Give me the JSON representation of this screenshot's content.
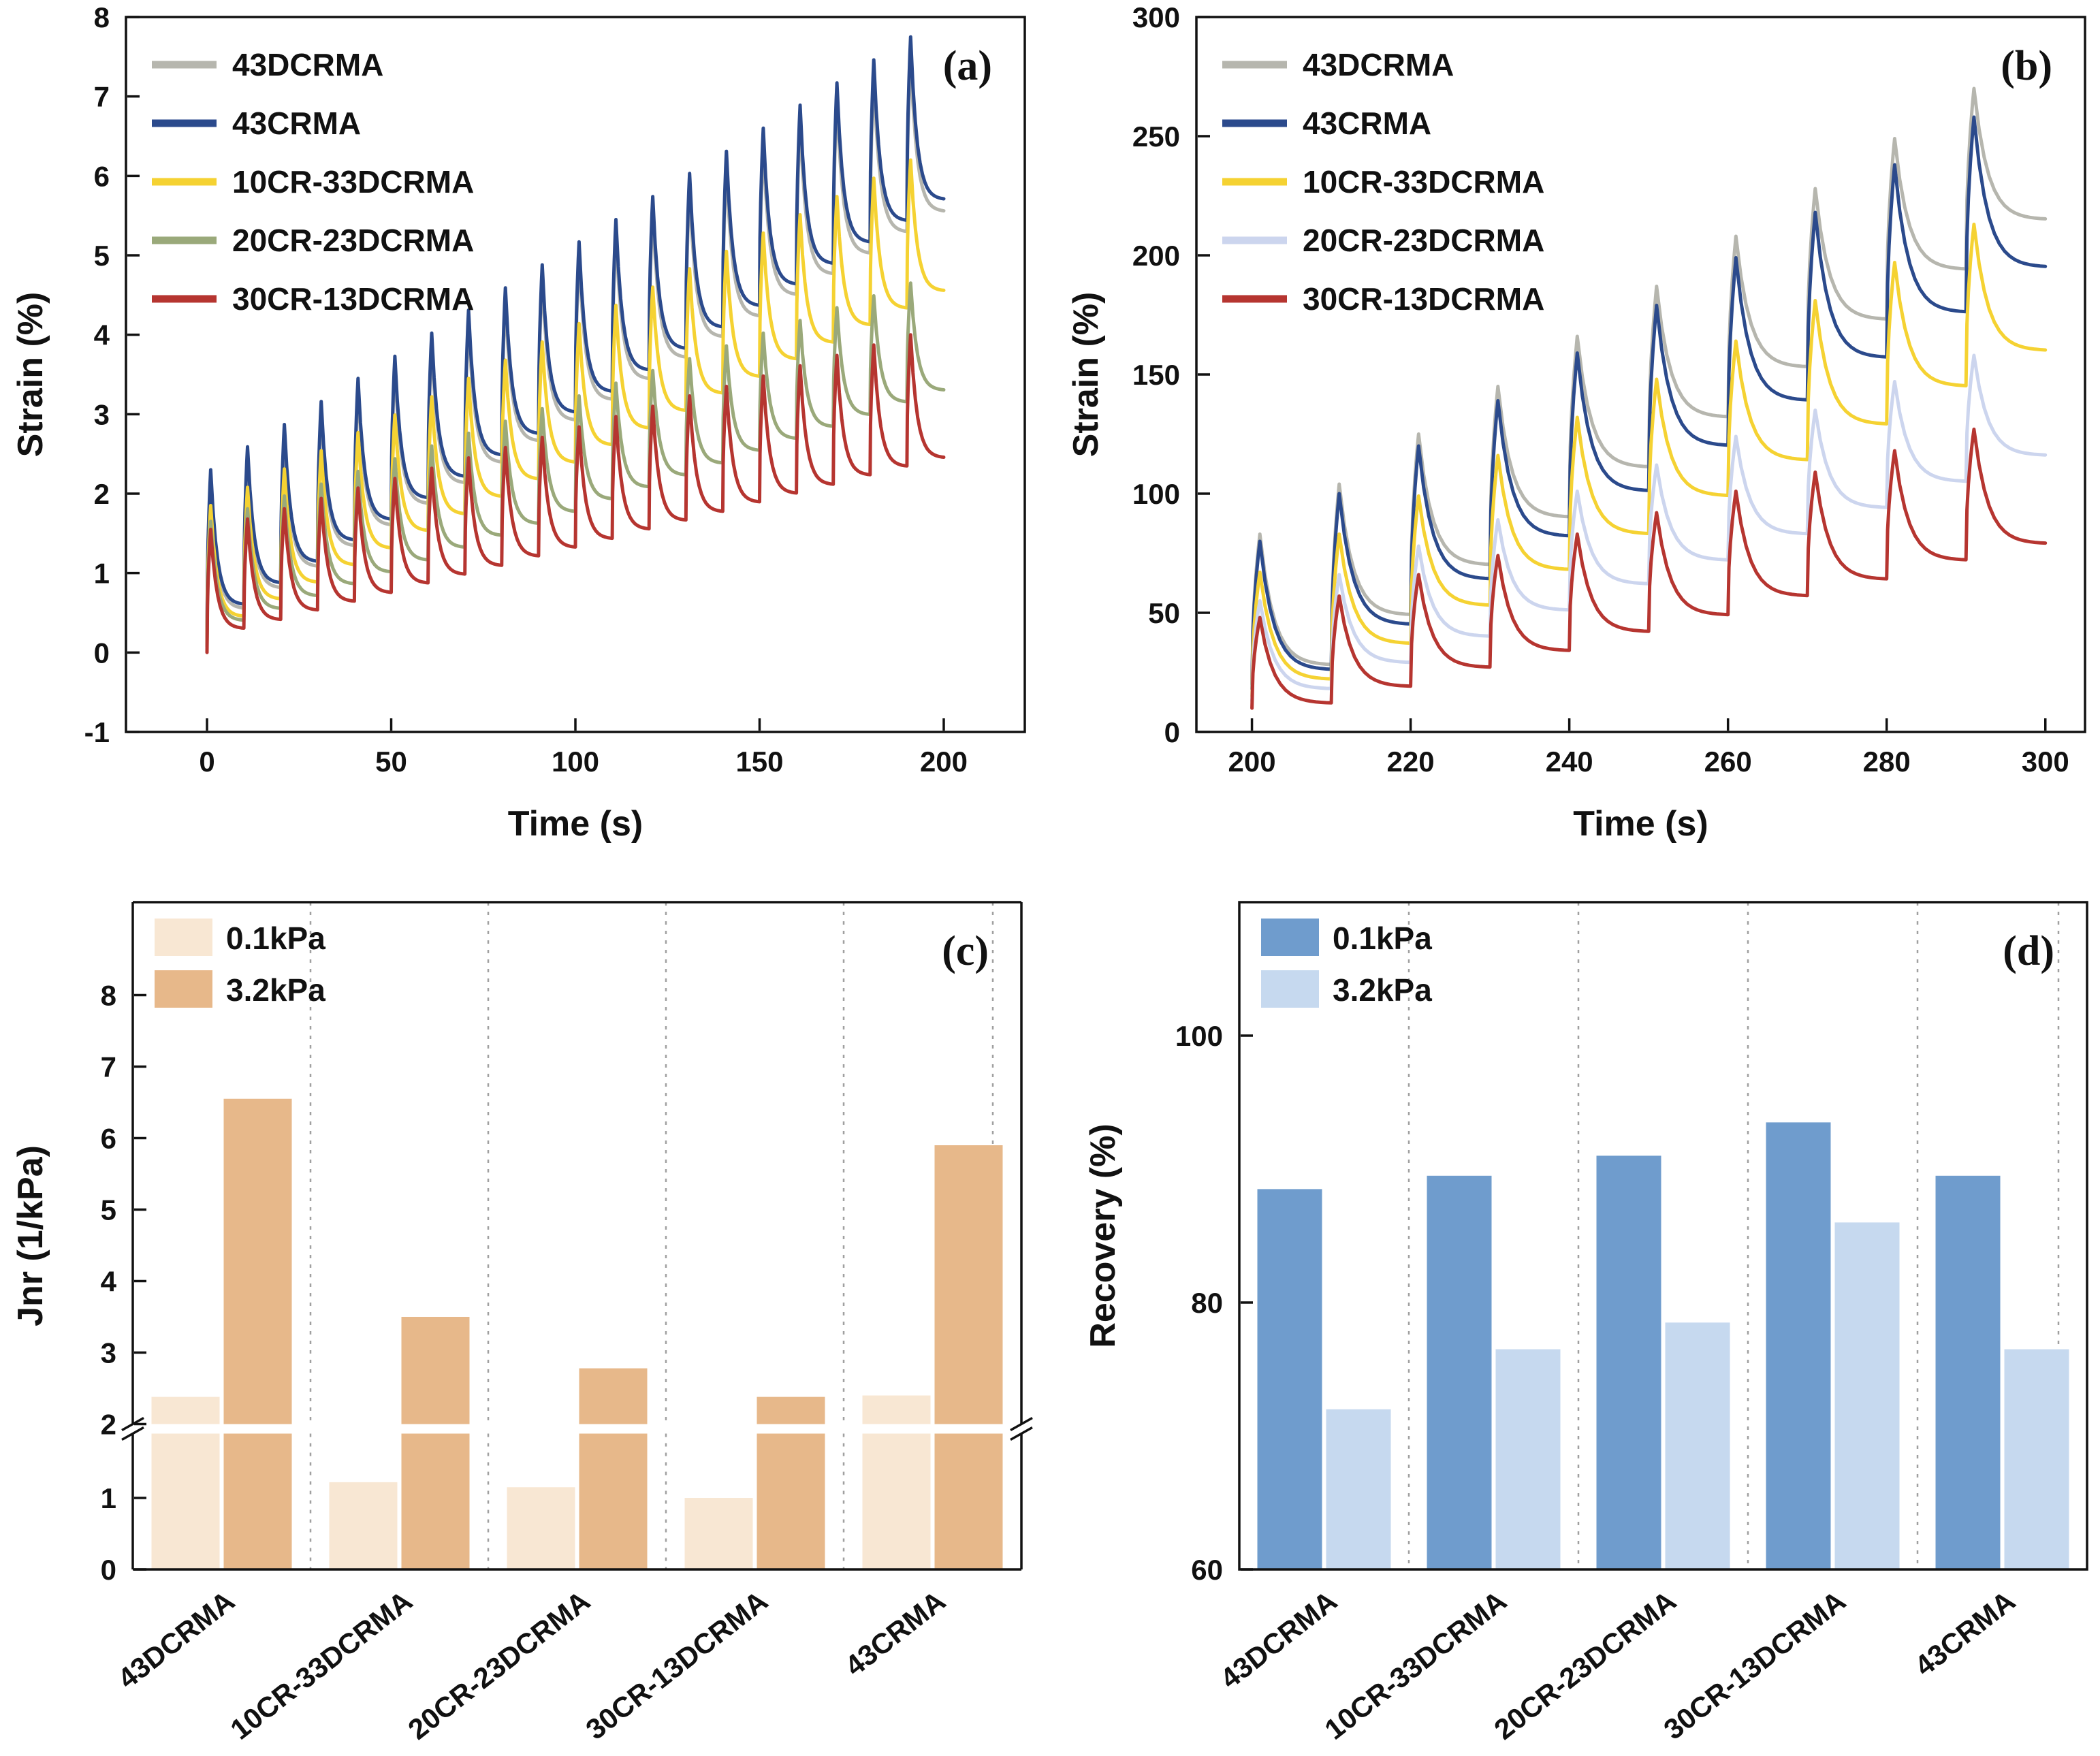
{
  "page": {
    "background": "#ffffff",
    "text_color": "#111111",
    "frame_color": "#111111",
    "gridline_color": "#a0a0a0"
  },
  "chart_data": [
    {
      "id": "a",
      "type": "line",
      "panel_label": "(a)",
      "xlabel": "Time (s)",
      "ylabel": "Strain (%)",
      "xlim": [
        -22,
        222
      ],
      "ylim": [
        -1,
        8
      ],
      "xticks": [
        0,
        50,
        100,
        150,
        200
      ],
      "yticks": [
        -1,
        0,
        1,
        2,
        3,
        4,
        5,
        6,
        7,
        8
      ],
      "legend_position": "top-left",
      "grid": false,
      "cycle": {
        "t_start": 0,
        "period_s": 10,
        "load_s": 1,
        "n_cycles": 20
      },
      "series": [
        {
          "name": "43DCRMA",
          "color": "#b6b6ae",
          "base0": 0.15,
          "peaks": [
            2.2,
            2.48,
            2.76,
            3.04,
            3.32,
            3.59,
            3.87,
            4.15,
            4.43,
            4.71,
            4.99,
            5.27,
            5.55,
            5.83,
            6.1,
            6.38,
            6.66,
            6.94,
            7.22,
            7.5
          ],
          "residuals": [
            0.55,
            0.81,
            1.08,
            1.34,
            1.6,
            1.87,
            2.13,
            2.39,
            2.66,
            2.92,
            3.18,
            3.44,
            3.71,
            3.97,
            4.23,
            4.5,
            4.76,
            5.02,
            5.29,
            5.55
          ]
        },
        {
          "name": "43CRMA",
          "color": "#2b4a8c",
          "base0": 0.18,
          "peaks": [
            2.3,
            2.59,
            2.87,
            3.16,
            3.45,
            3.73,
            4.02,
            4.31,
            4.59,
            4.88,
            5.17,
            5.45,
            5.74,
            6.03,
            6.31,
            6.6,
            6.89,
            7.17,
            7.46,
            7.75
          ],
          "residuals": [
            0.6,
            0.87,
            1.14,
            1.41,
            1.67,
            1.94,
            2.21,
            2.48,
            2.75,
            3.02,
            3.28,
            3.55,
            3.82,
            4.09,
            4.36,
            4.63,
            4.89,
            5.16,
            5.43,
            5.7
          ]
        },
        {
          "name": "10CR-33DCRMA",
          "color": "#f5d232",
          "base0": 0.1,
          "peaks": [
            1.85,
            2.08,
            2.31,
            2.54,
            2.77,
            2.99,
            3.22,
            3.45,
            3.68,
            3.91,
            4.14,
            4.37,
            4.6,
            4.83,
            5.05,
            5.28,
            5.51,
            5.74,
            5.97,
            6.2
          ],
          "residuals": [
            0.45,
            0.67,
            0.88,
            1.1,
            1.31,
            1.53,
            1.74,
            1.96,
            2.18,
            2.39,
            2.61,
            2.82,
            3.04,
            3.26,
            3.47,
            3.69,
            3.9,
            4.12,
            4.33,
            4.55
          ]
        },
        {
          "name": "20CR-23DCRMA",
          "color": "#9aa97a",
          "base0": 0.08,
          "peaks": [
            1.65,
            1.81,
            1.97,
            2.12,
            2.28,
            2.44,
            2.6,
            2.76,
            2.91,
            3.07,
            3.23,
            3.39,
            3.55,
            3.7,
            3.86,
            4.02,
            4.18,
            4.34,
            4.49,
            4.65
          ],
          "residuals": [
            0.4,
            0.55,
            0.71,
            0.86,
            1.01,
            1.16,
            1.32,
            1.47,
            1.62,
            1.77,
            1.93,
            2.08,
            2.23,
            2.38,
            2.54,
            2.69,
            2.84,
            2.99,
            3.15,
            3.3
          ]
        },
        {
          "name": "30CR-13DCRMA",
          "color": "#b63530",
          "base0": 0.0,
          "peaks": [
            1.55,
            1.68,
            1.81,
            1.94,
            2.07,
            2.19,
            2.32,
            2.45,
            2.58,
            2.71,
            2.84,
            2.97,
            3.1,
            3.23,
            3.35,
            3.48,
            3.61,
            3.74,
            3.87,
            4.0
          ],
          "residuals": [
            0.3,
            0.41,
            0.53,
            0.64,
            0.75,
            0.87,
            0.98,
            1.09,
            1.21,
            1.32,
            1.43,
            1.55,
            1.66,
            1.77,
            1.89,
            2.0,
            2.11,
            2.23,
            2.34,
            2.45
          ]
        }
      ]
    },
    {
      "id": "b",
      "type": "line",
      "panel_label": "(b)",
      "xlabel": "Time (s)",
      "ylabel": "Strain (%)",
      "xlim": [
        193,
        305
      ],
      "ylim": [
        0,
        300
      ],
      "xticks": [
        200,
        220,
        240,
        260,
        280,
        300
      ],
      "yticks": [
        0,
        50,
        100,
        150,
        200,
        250,
        300
      ],
      "legend_position": "top-left",
      "grid": false,
      "cycle": {
        "t_start": 200,
        "period_s": 10,
        "load_s": 1,
        "n_cycles": 10
      },
      "series": [
        {
          "name": "43DCRMA",
          "color": "#b6b6ae",
          "base0": 20,
          "peaks": [
            83,
            104,
            125,
            145,
            166,
            187,
            208,
            228,
            249,
            270
          ],
          "residuals": [
            28,
            49,
            70,
            90,
            111,
            132,
            153,
            173,
            194,
            215
          ]
        },
        {
          "name": "43CRMA",
          "color": "#2b4a8c",
          "base0": 18,
          "peaks": [
            80,
            100,
            120,
            139,
            159,
            179,
            199,
            218,
            238,
            258
          ],
          "residuals": [
            26,
            45,
            64,
            82,
            101,
            120,
            139,
            157,
            176,
            195
          ]
        },
        {
          "name": "10CR-33DCRMA",
          "color": "#f5d232",
          "base0": 15,
          "peaks": [
            67,
            83,
            99,
            116,
            132,
            148,
            164,
            181,
            197,
            213
          ],
          "residuals": [
            22,
            37,
            53,
            68,
            83,
            99,
            114,
            129,
            145,
            160
          ]
        },
        {
          "name": "20CR-23DCRMA",
          "color": "#ccd5ee",
          "base0": 13,
          "peaks": [
            55,
            66,
            78,
            89,
            101,
            112,
            124,
            135,
            147,
            158
          ],
          "residuals": [
            18,
            29,
            40,
            51,
            62,
            72,
            83,
            94,
            105,
            116
          ]
        },
        {
          "name": "30CR-13DCRMA",
          "color": "#b63530",
          "base0": 10,
          "peaks": [
            48,
            57,
            66,
            74,
            83,
            92,
            101,
            109,
            118,
            127
          ],
          "residuals": [
            12,
            19,
            27,
            34,
            42,
            49,
            57,
            64,
            72,
            79
          ]
        }
      ]
    },
    {
      "id": "c",
      "type": "bar",
      "subtype": "grouped-broken-axis",
      "panel_label": "(c)",
      "xlabel": "",
      "ylabel": "Jnr (1/kPa)",
      "categories": [
        "43DCRMA",
        "10CR-33DCRMA",
        "20CR-23DCRMA",
        "30CR-13DCRMA",
        "43CRMA"
      ],
      "series": [
        {
          "name": "0.1kPa",
          "color": "#f8e7d3",
          "values": [
            2.38,
            1.22,
            1.15,
            1.0,
            2.4
          ]
        },
        {
          "name": "3.2kPa",
          "color": "#e7b88a",
          "values": [
            6.55,
            3.5,
            2.78,
            2.38,
            5.9
          ]
        }
      ],
      "axis_break": {
        "lower_range": [
          0,
          1.9
        ],
        "upper_range": [
          2,
          9.3
        ],
        "lower_ticks": [
          0,
          1
        ],
        "upper_ticks": [
          2,
          3,
          4,
          5,
          6,
          7,
          8
        ]
      },
      "legend_position": "top-left",
      "gridlines": "dashed-vertical"
    },
    {
      "id": "d",
      "type": "bar",
      "subtype": "grouped",
      "panel_label": "(d)",
      "xlabel": "",
      "ylabel": "Recovery (%)",
      "ylim": [
        60,
        110
      ],
      "yticks": [
        60,
        80,
        100
      ],
      "categories": [
        "43DCRMA",
        "10CR-33DCRMA",
        "20CR-23DCRMA",
        "30CR-13DCRMA",
        "43CRMA"
      ],
      "series": [
        {
          "name": "0.1kPa",
          "color": "#6f9ccd",
          "values": [
            88.5,
            89.5,
            91.0,
            93.5,
            89.5
          ]
        },
        {
          "name": "3.2kPa",
          "color": "#c6d9ef",
          "values": [
            72.0,
            76.5,
            78.5,
            86.0,
            76.5
          ]
        }
      ],
      "legend_position": "top-left",
      "gridlines": "dashed-vertical"
    }
  ]
}
